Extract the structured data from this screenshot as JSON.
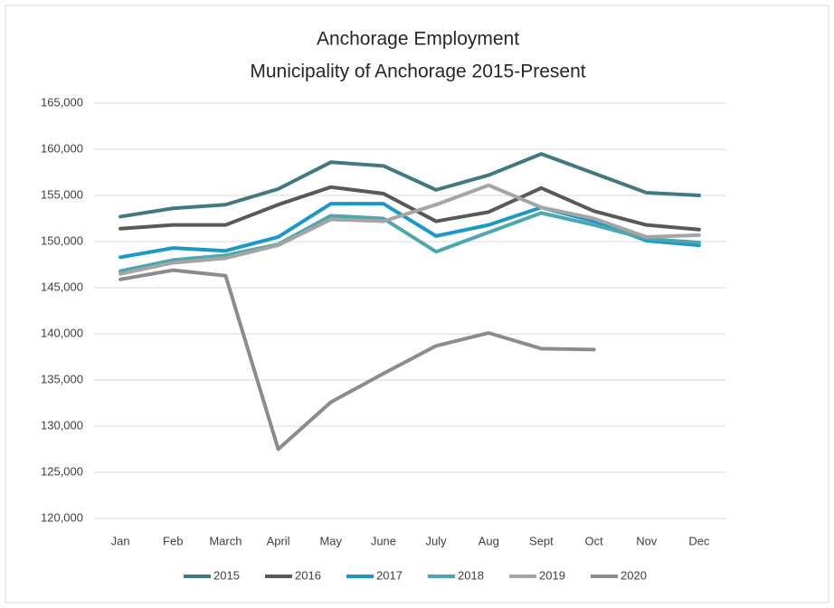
{
  "chart_data": {
    "type": "line",
    "title": "Anchorage Employment",
    "subtitle": "Municipality of Anchorage 2015-Present",
    "categories": [
      "Jan",
      "Feb",
      "March",
      "April",
      "May",
      "June",
      "July",
      "Aug",
      "Sept",
      "Oct",
      "Nov",
      "Dec"
    ],
    "series": [
      {
        "name": "2015",
        "color": "#41797f",
        "values": [
          152700,
          153600,
          154000,
          155700,
          158600,
          158200,
          155600,
          157200,
          159500,
          157400,
          155300,
          155000
        ]
      },
      {
        "name": "2016",
        "color": "#595959",
        "values": [
          151400,
          151800,
          151800,
          154000,
          155900,
          155200,
          152200,
          153200,
          155800,
          153300,
          151800,
          151300
        ]
      },
      {
        "name": "2017",
        "color": "#1b98c8",
        "values": [
          148300,
          149300,
          149000,
          150500,
          154100,
          154100,
          150600,
          151800,
          153700,
          152200,
          150100,
          149600
        ]
      },
      {
        "name": "2018",
        "color": "#4ea6ae",
        "values": [
          146800,
          148000,
          148500,
          149700,
          152800,
          152500,
          148900,
          151000,
          153100,
          151800,
          150300,
          149900
        ]
      },
      {
        "name": "2019",
        "color": "#a5a5a5",
        "values": [
          146500,
          147700,
          148200,
          149600,
          152400,
          152200,
          154000,
          156100,
          153700,
          152500,
          150500,
          150700
        ]
      },
      {
        "name": "2020",
        "color": "#8c8c8e",
        "values": [
          145900,
          146900,
          146300,
          127500,
          132600,
          135700,
          138700,
          140100,
          138400,
          138300,
          null,
          null
        ]
      }
    ],
    "ylim": [
      120000,
      165000
    ],
    "yticks": [
      {
        "value": 120000,
        "label": "120,000"
      },
      {
        "value": 125000,
        "label": "125,000"
      },
      {
        "value": 130000,
        "label": "130,000"
      },
      {
        "value": 135000,
        "label": "135,000"
      },
      {
        "value": 140000,
        "label": "140,000"
      },
      {
        "value": 145000,
        "label": "145,000"
      },
      {
        "value": 150000,
        "label": "150,000"
      },
      {
        "value": 155000,
        "label": "155,000"
      },
      {
        "value": 160000,
        "label": "160,000"
      },
      {
        "value": 165000,
        "label": "165,000"
      }
    ],
    "grid": true,
    "legend": "bottom"
  }
}
